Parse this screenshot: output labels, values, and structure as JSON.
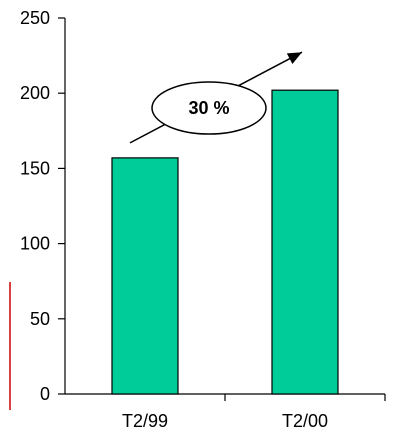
{
  "chart_data": {
    "type": "bar",
    "categories": [
      "T2/99",
      "T2/00"
    ],
    "values": [
      157,
      202
    ],
    "ylim": [
      0,
      250
    ],
    "yticks": [
      0,
      50,
      100,
      150,
      200,
      250
    ],
    "annotations": [
      {
        "text": "30 %",
        "arrow_from": "T2/99",
        "arrow_to": "T2/00"
      }
    ],
    "grid": false,
    "legend": "none"
  },
  "colors": {
    "bar_fill": "#00CC99",
    "bar_stroke": "#000000",
    "axis": "#000000",
    "side_mark": "#CC0000"
  }
}
